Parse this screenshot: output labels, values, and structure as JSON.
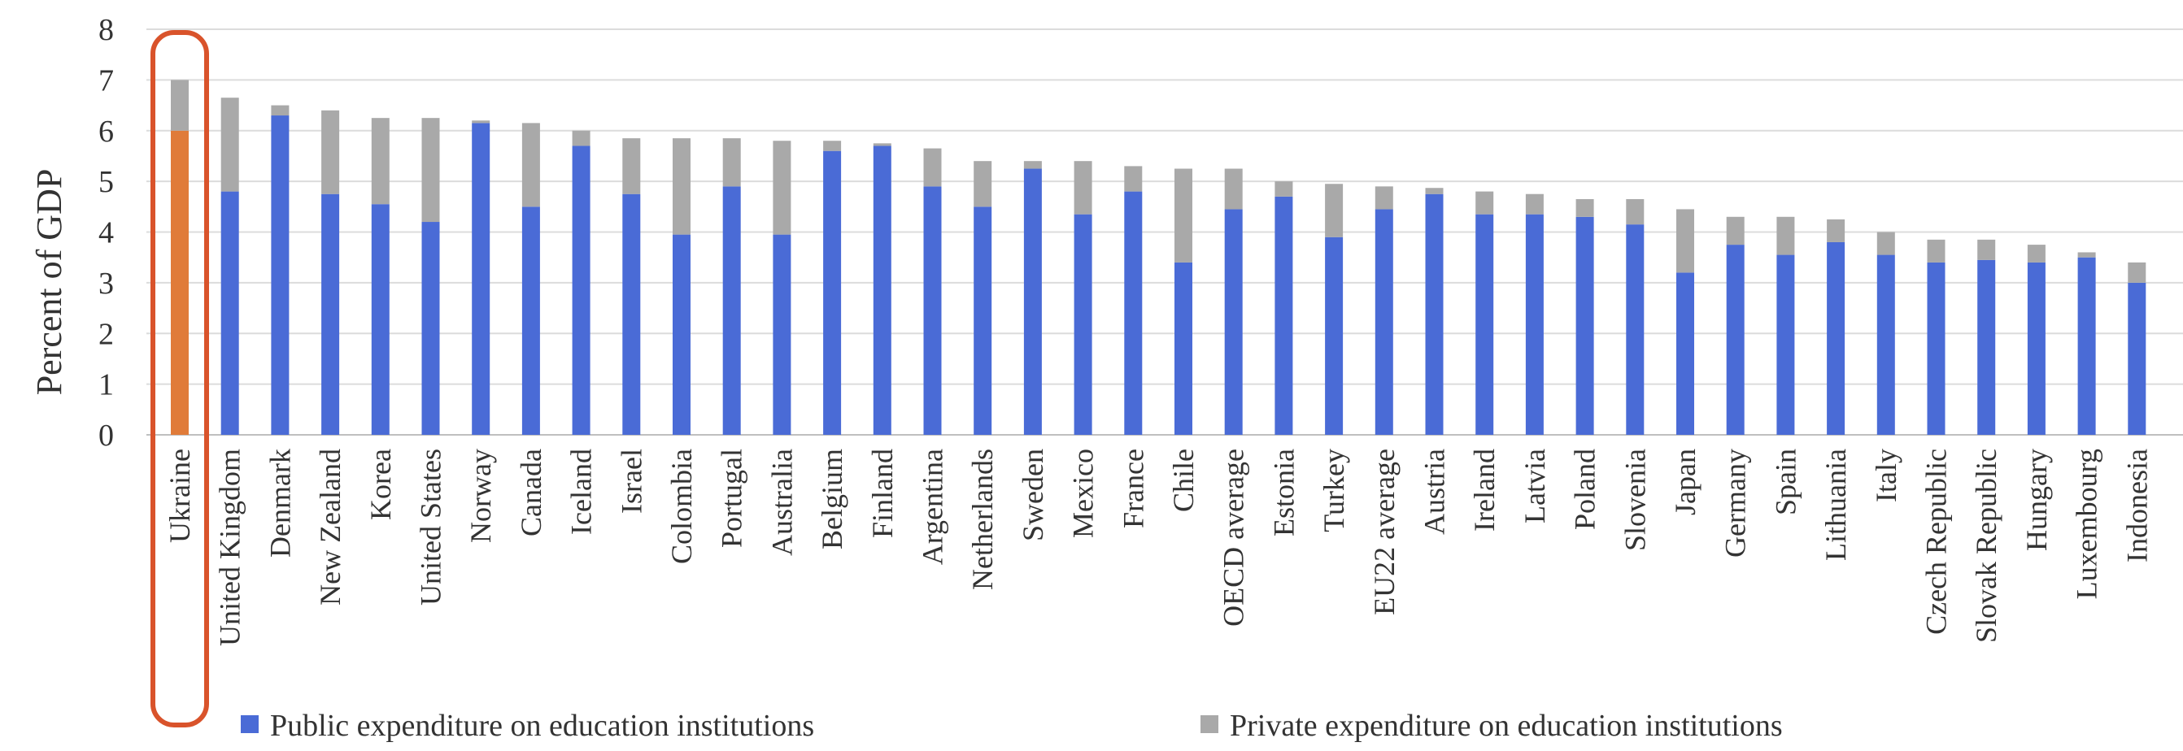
{
  "chart_data": {
    "type": "bar",
    "stacked": true,
    "title": "",
    "xlabel": "",
    "ylabel": "Percent of GDP",
    "ylim": [
      0,
      8
    ],
    "yticks": [
      "0",
      "1",
      "2",
      "3",
      "4",
      "5",
      "6",
      "7",
      "8"
    ],
    "grid": true,
    "legend_position": "bottom",
    "highlighted_category": "Ukraine",
    "categories": [
      "Ukraine",
      "United Kingdom",
      "Denmark",
      "New Zealand",
      "Korea",
      "United States",
      "Norway",
      "Canada",
      "Iceland",
      "Israel",
      "Colombia",
      "Portugal",
      "Australia",
      "Belgium",
      "Finland",
      "Argentina",
      "Netherlands",
      "Sweden",
      "Mexico",
      "France",
      "Chile",
      "OECD average",
      "Estonia",
      "Turkey",
      "EU22 average",
      "Austria",
      "Ireland",
      "Latvia",
      "Poland",
      "Slovenia",
      "Japan",
      "Germany",
      "Spain",
      "Lithuania",
      "Italy",
      "Czech Republic",
      "Slovak Republic",
      "Hungary",
      "Luxembourg",
      "Indonesia"
    ],
    "series": [
      {
        "name": "Public expenditure on education institutions",
        "color": "#4a6bd6",
        "values": [
          6.0,
          4.8,
          6.3,
          4.75,
          4.55,
          4.2,
          6.15,
          4.5,
          5.7,
          4.75,
          3.95,
          4.9,
          3.95,
          5.6,
          5.7,
          4.9,
          4.5,
          5.25,
          4.35,
          4.8,
          3.4,
          4.45,
          4.7,
          3.9,
          4.45,
          4.75,
          4.35,
          4.35,
          4.3,
          4.15,
          3.2,
          3.75,
          3.55,
          3.8,
          3.55,
          3.4,
          3.45,
          3.4,
          3.5,
          3.0
        ]
      },
      {
        "name": "Private expenditure on education institutions",
        "color": "#a9a9a9",
        "values": [
          1.0,
          1.85,
          0.2,
          1.65,
          1.7,
          2.05,
          0.05,
          1.65,
          0.3,
          1.1,
          1.9,
          0.95,
          1.85,
          0.2,
          0.05,
          0.75,
          0.9,
          0.15,
          1.05,
          0.5,
          1.85,
          0.8,
          0.3,
          1.05,
          0.45,
          0.12,
          0.45,
          0.4,
          0.35,
          0.5,
          1.25,
          0.55,
          0.75,
          0.45,
          0.45,
          0.45,
          0.4,
          0.35,
          0.1,
          0.4
        ]
      }
    ],
    "highlight_color": "#e07b39",
    "highlight_private_color": "#a9a9a9",
    "highlight_outline_color": "#d9532b"
  }
}
